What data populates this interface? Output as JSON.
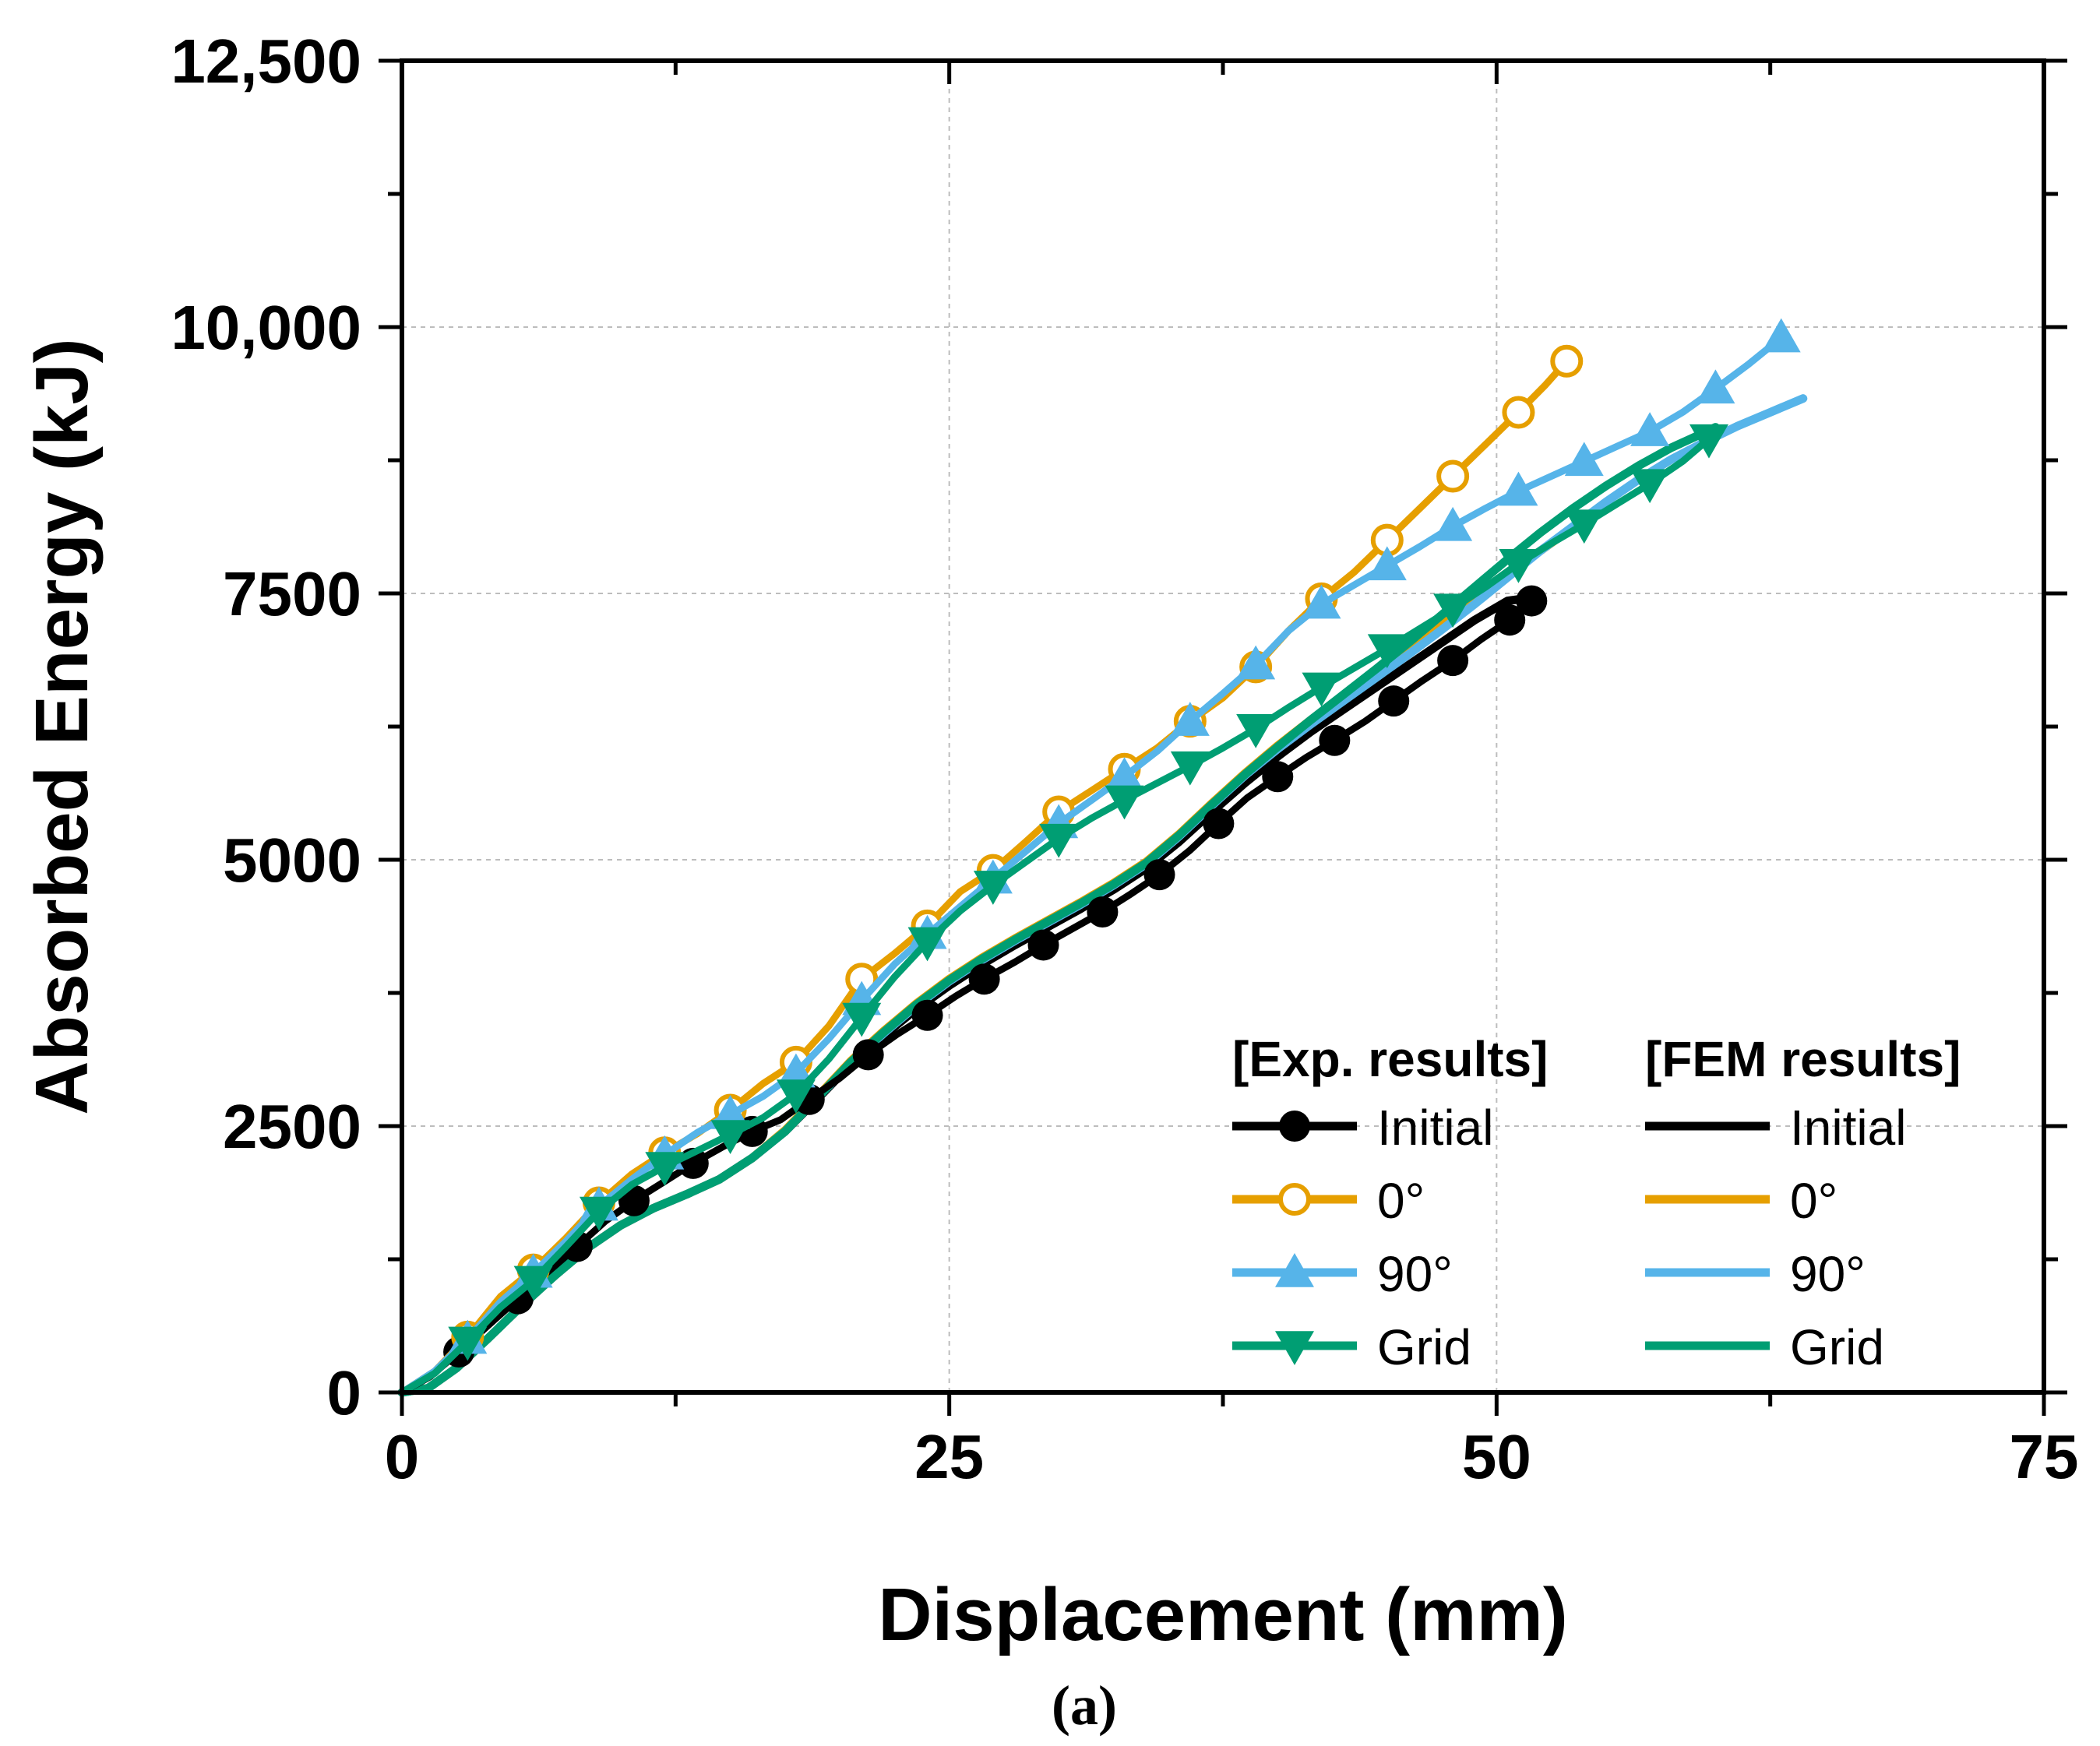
{
  "chart_data": {
    "type": "line",
    "caption": "(a)",
    "xlabel": "Displacement (mm)",
    "ylabel": "Absorbed Energy (kJ)",
    "xlim": [
      0,
      75
    ],
    "ylim": [
      0,
      12500
    ],
    "x_ticks": [
      0,
      25,
      50,
      75
    ],
    "x_tick_labels": [
      "0",
      "25",
      "50",
      "75"
    ],
    "y_ticks": [
      0,
      2500,
      5000,
      7500,
      10000,
      12500
    ],
    "y_tick_labels": [
      "0",
      "2500",
      "5000",
      "7500",
      "10,000",
      "12,500"
    ],
    "grid": true,
    "legend": {
      "position": "bottom-right",
      "exp_header": "[Exp. results]",
      "fem_header": "[FEM results]",
      "exp_labels": [
        "Initial",
        "0°",
        "90°",
        "Grid"
      ],
      "fem_labels": [
        "Initial",
        "0°",
        "90°",
        "Grid"
      ]
    },
    "series": [
      {
        "name": "Exp. Initial",
        "group": "exp",
        "color": "#000000",
        "marker": "circle-filled",
        "x": [
          0,
          1.3,
          2.6,
          4,
          5.3,
          6.6,
          8,
          9.3,
          10.6,
          12,
          13.3,
          14.6,
          16,
          17.3,
          18.6,
          20,
          21.3,
          22.6,
          24,
          25.3,
          26.6,
          28,
          29.3,
          30.6,
          32,
          33.3,
          34.6,
          36,
          37.3,
          38.6,
          40,
          41.3,
          42.6,
          44,
          45.3,
          46.6,
          48,
          49.3,
          50.6,
          51.6
        ],
        "y": [
          0,
          150,
          380,
          640,
          880,
          1120,
          1370,
          1610,
          1800,
          1980,
          2150,
          2300,
          2450,
          2560,
          2750,
          2950,
          3170,
          3360,
          3540,
          3720,
          3880,
          4040,
          4200,
          4350,
          4510,
          4680,
          4860,
          5090,
          5340,
          5580,
          5780,
          5960,
          6120,
          6300,
          6490,
          6680,
          6870,
          7070,
          7250,
          7430
        ],
        "marker_every": 2
      },
      {
        "name": "Exp. 0°",
        "group": "exp",
        "color": "#E69F00",
        "marker": "circle-open",
        "x": [
          0,
          1.5,
          3,
          4.5,
          6,
          7.5,
          9,
          10.5,
          12,
          13.5,
          15,
          16.5,
          18,
          19.5,
          21,
          22.5,
          24,
          25.5,
          27,
          28.5,
          30,
          31.5,
          33,
          34.5,
          36,
          37.5,
          39,
          40.5,
          42,
          43.5,
          45,
          46.5,
          48,
          49.5,
          51,
          52.2,
          53.2
        ],
        "y": [
          0,
          200,
          520,
          900,
          1150,
          1450,
          1780,
          2050,
          2250,
          2430,
          2650,
          2900,
          3100,
          3440,
          3880,
          4120,
          4380,
          4700,
          4900,
          5170,
          5450,
          5650,
          5850,
          6050,
          6300,
          6520,
          6810,
          7150,
          7450,
          7700,
          8000,
          8300,
          8600,
          8900,
          9200,
          9450,
          9680
        ],
        "marker_every": 2
      },
      {
        "name": "Exp. 90°",
        "group": "exp",
        "color": "#56B4E9",
        "marker": "triangle-up",
        "x": [
          0,
          1.5,
          3,
          4.5,
          6,
          7.5,
          9,
          10.5,
          12,
          13.5,
          15,
          16.5,
          18,
          19.5,
          21,
          22.5,
          24,
          25.5,
          27,
          28.5,
          30,
          31.5,
          33,
          34.5,
          36,
          37.5,
          39,
          40.5,
          42,
          43.5,
          45,
          46.5,
          48,
          49.5,
          51,
          52.5,
          54,
          55.5,
          57,
          58.5,
          60,
          61.5,
          63
        ],
        "y": [
          0,
          200,
          500,
          850,
          1120,
          1420,
          1750,
          2000,
          2230,
          2440,
          2610,
          2780,
          3000,
          3320,
          3680,
          4020,
          4300,
          4560,
          4820,
          5080,
          5340,
          5560,
          5780,
          6020,
          6300,
          6560,
          6830,
          7150,
          7400,
          7580,
          7760,
          7940,
          8130,
          8300,
          8460,
          8600,
          8740,
          8880,
          9020,
          9200,
          9420,
          9650,
          9900
        ],
        "marker_every": 2
      },
      {
        "name": "Exp. Grid",
        "group": "exp",
        "color": "#009E73",
        "marker": "triangle-down",
        "x": [
          0,
          1.5,
          3,
          4.5,
          6,
          7.5,
          9,
          10.5,
          12,
          13.5,
          15,
          16.5,
          18,
          19.5,
          21,
          22.5,
          24,
          25.5,
          27,
          28.5,
          30,
          31.5,
          33,
          34.5,
          36,
          37.5,
          39,
          40.5,
          42,
          43.5,
          45,
          46.5,
          48,
          49.5,
          51,
          52.5,
          54,
          55.5,
          57,
          58.5,
          59.7
        ],
        "y": [
          0,
          180,
          480,
          800,
          1050,
          1370,
          1700,
          1950,
          2120,
          2270,
          2420,
          2580,
          2800,
          3130,
          3520,
          3900,
          4230,
          4520,
          4760,
          4980,
          5200,
          5390,
          5560,
          5720,
          5880,
          6050,
          6230,
          6430,
          6620,
          6800,
          6980,
          7170,
          7360,
          7560,
          7780,
          7970,
          8150,
          8340,
          8530,
          8740,
          8950
        ],
        "marker_every": 2
      },
      {
        "name": "FEM Initial",
        "group": "fem",
        "color": "#000000",
        "marker": "none",
        "x": [
          0,
          1.2,
          2.5,
          4,
          5.5,
          7,
          8.5,
          10,
          11.5,
          13,
          14.5,
          16,
          17.5,
          19,
          20.5,
          22,
          23.5,
          25,
          26.5,
          28,
          29.5,
          31,
          32.5,
          34,
          35.5,
          37,
          38.5,
          40,
          41.5,
          43,
          44.5,
          46,
          47.5,
          49,
          50.5,
          51.6
        ],
        "y": [
          0,
          40,
          230,
          520,
          820,
          1100,
          1360,
          1570,
          1730,
          1860,
          2000,
          2200,
          2450,
          2760,
          3080,
          3350,
          3600,
          3820,
          4020,
          4200,
          4370,
          4540,
          4720,
          4920,
          5170,
          5450,
          5720,
          5970,
          6200,
          6410,
          6620,
          6830,
          7040,
          7250,
          7430,
          7460
        ]
      },
      {
        "name": "FEM 0°",
        "group": "fem",
        "color": "#E69F00",
        "marker": "none",
        "x": [
          0,
          1.2,
          2.5,
          4,
          5.5,
          7,
          8.5,
          10,
          11.5,
          13,
          14.5,
          16,
          17.5,
          19,
          20.5,
          22,
          23.5,
          25,
          26.5,
          28,
          29.5,
          31,
          32.5,
          34,
          35.5,
          37,
          38.5,
          40,
          41.5,
          43,
          44.5,
          46,
          47.5,
          49,
          50.5,
          52,
          53.5
        ],
        "y": [
          0,
          40,
          230,
          520,
          820,
          1100,
          1360,
          1570,
          1730,
          1860,
          2000,
          2200,
          2460,
          2780,
          3110,
          3390,
          3650,
          3880,
          4080,
          4260,
          4430,
          4600,
          4780,
          4980,
          5240,
          5530,
          5810,
          6070,
          6310,
          6540,
          6770,
          7000,
          7230,
          7460,
          7690,
          7900,
          8120
        ]
      },
      {
        "name": "FEM 90°",
        "group": "fem",
        "color": "#56B4E9",
        "marker": "none",
        "x": [
          0,
          1.2,
          2.5,
          4,
          5.5,
          7,
          8.5,
          10,
          11.5,
          13,
          14.5,
          16,
          17.5,
          19,
          20.5,
          22,
          23.5,
          25,
          26.5,
          28,
          29.5,
          31,
          32.5,
          34,
          35.5,
          37,
          38.5,
          40,
          41.5,
          43,
          44.5,
          46,
          47.5,
          49,
          50.5,
          52,
          53.5,
          55,
          56.5,
          58,
          59.5,
          61,
          62.5,
          64
        ],
        "y": [
          0,
          40,
          230,
          520,
          820,
          1100,
          1360,
          1570,
          1730,
          1860,
          2000,
          2200,
          2450,
          2770,
          3090,
          3370,
          3630,
          3860,
          4060,
          4240,
          4410,
          4580,
          4760,
          4960,
          5220,
          5510,
          5790,
          6040,
          6270,
          6490,
          6710,
          6930,
          7160,
          7400,
          7650,
          7900,
          8130,
          8360,
          8570,
          8760,
          8920,
          9070,
          9200,
          9330
        ]
      },
      {
        "name": "FEM Grid",
        "group": "fem",
        "color": "#009E73",
        "marker": "none",
        "x": [
          0,
          1.2,
          2.5,
          4,
          5.5,
          7,
          8.5,
          10,
          11.5,
          13,
          14.5,
          16,
          17.5,
          19,
          20.5,
          22,
          23.5,
          25,
          26.5,
          28,
          29.5,
          31,
          32.5,
          34,
          35.5,
          37,
          38.5,
          40,
          41.5,
          43,
          44.5,
          46,
          47.5,
          49,
          50.5,
          52,
          53.5,
          55,
          56.5,
          58,
          59.5,
          60
        ],
        "y": [
          0,
          40,
          230,
          520,
          820,
          1100,
          1360,
          1570,
          1730,
          1860,
          2000,
          2200,
          2450,
          2770,
          3100,
          3380,
          3640,
          3870,
          4070,
          4250,
          4420,
          4590,
          4770,
          4970,
          5230,
          5520,
          5800,
          6060,
          6310,
          6550,
          6790,
          7040,
          7300,
          7560,
          7820,
          8070,
          8300,
          8510,
          8700,
          8870,
          9010,
          9060
        ]
      }
    ]
  }
}
